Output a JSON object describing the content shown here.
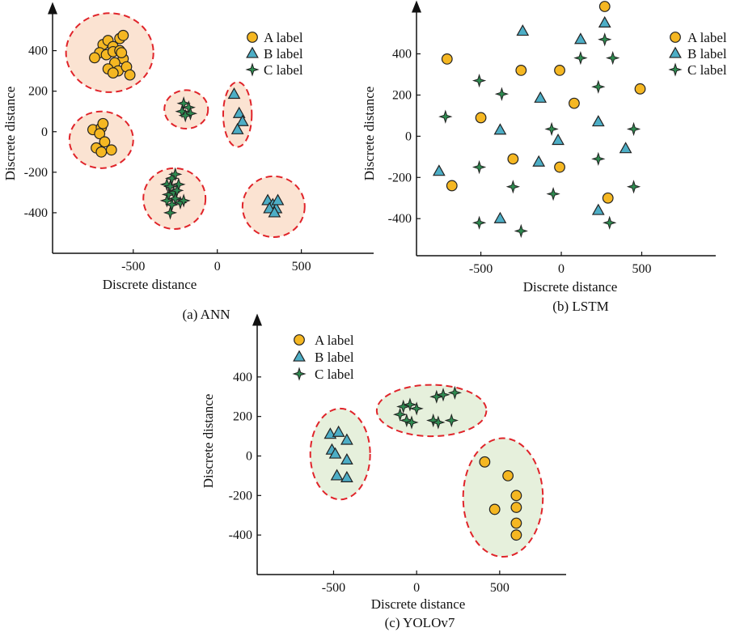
{
  "colors": {
    "a_fill": "#F5B722",
    "b_fill": "#4DAEC6",
    "c_fill": "#2E8B50",
    "marker_stroke": "#222222",
    "cluster_stroke": "#E0242A",
    "cluster_fill_ann": "#FBE3D2",
    "cluster_fill_yolo": "#E6F0DC"
  },
  "icons": {
    "a": "circle-marker",
    "b": "triangle-marker",
    "c": "four-point-star-marker"
  },
  "chart_data": [
    {
      "type": "scatter",
      "caption": "(a) ANN",
      "xlabel": "Discrete distance",
      "ylabel": "Discrete distance",
      "xlim": [
        -980,
        930
      ],
      "ylim": [
        -600,
        610
      ],
      "xticks": [
        -500,
        0,
        500
      ],
      "yticks": [
        -400,
        -200,
        0,
        200,
        400
      ],
      "grid": false,
      "legend": "top-right",
      "series": [
        {
          "name": "A label",
          "marker": "circle",
          "points": [
            [
              -680,
              430
            ],
            [
              -650,
              450
            ],
            [
              -620,
              420
            ],
            [
              -580,
              460
            ],
            [
              -560,
              475
            ],
            [
              -700,
              390
            ],
            [
              -660,
              380
            ],
            [
              -620,
              395
            ],
            [
              -580,
              400
            ],
            [
              -560,
              360
            ],
            [
              -610,
              340
            ],
            [
              -650,
              310
            ],
            [
              -590,
              300
            ],
            [
              -540,
              320
            ],
            [
              -570,
              390
            ],
            [
              -730,
              365
            ],
            [
              -620,
              290
            ],
            [
              -520,
              280
            ],
            [
              -740,
              10
            ],
            [
              -690,
              20
            ],
            [
              -680,
              40
            ],
            [
              -700,
              -10
            ],
            [
              -670,
              -50
            ],
            [
              -720,
              -80
            ],
            [
              -690,
              -100
            ],
            [
              -630,
              -90
            ]
          ]
        },
        {
          "name": "B label",
          "marker": "triangle",
          "points": [
            [
              100,
              185
            ],
            [
              130,
              90
            ],
            [
              150,
              50
            ],
            [
              120,
              10
            ],
            [
              300,
              -340
            ],
            [
              330,
              -360
            ],
            [
              350,
              -380
            ],
            [
              310,
              -380
            ],
            [
              360,
              -340
            ],
            [
              340,
              -400
            ]
          ]
        },
        {
          "name": "C label",
          "marker": "star",
          "points": [
            [
              -200,
              140
            ],
            [
              -170,
              120
            ],
            [
              -210,
              100
            ],
            [
              -160,
              90
            ],
            [
              -190,
              80
            ],
            [
              -300,
              -260
            ],
            [
              -270,
              -230
            ],
            [
              -250,
              -210
            ],
            [
              -280,
              -270
            ],
            [
              -230,
              -260
            ],
            [
              -290,
              -310
            ],
            [
              -260,
              -300
            ],
            [
              -300,
              -340
            ],
            [
              -250,
              -330
            ],
            [
              -220,
              -350
            ],
            [
              -270,
              -360
            ],
            [
              -200,
              -340
            ],
            [
              -280,
              -400
            ],
            [
              -240,
              -290
            ]
          ]
        }
      ],
      "clusters": [
        {
          "cx": -640,
          "cy": 390,
          "rx": 260,
          "ry": 195
        },
        {
          "cx": -690,
          "cy": -40,
          "rx": 190,
          "ry": 140
        },
        {
          "cx": -185,
          "cy": 110,
          "rx": 130,
          "ry": 95
        },
        {
          "cx": 120,
          "cy": 85,
          "rx": 85,
          "ry": 160
        },
        {
          "cx": -255,
          "cy": -330,
          "rx": 185,
          "ry": 150
        },
        {
          "cx": 335,
          "cy": -370,
          "rx": 185,
          "ry": 150
        }
      ]
    },
    {
      "type": "scatter",
      "caption": "(b) LSTM",
      "xlabel": "Discrete distance",
      "ylabel": "Discrete distance",
      "xlim": [
        -900,
        960
      ],
      "ylim": [
        -580,
        630
      ],
      "xticks": [
        -500,
        0,
        500
      ],
      "yticks": [
        -400,
        -200,
        0,
        200,
        400
      ],
      "grid": false,
      "legend": "top-right",
      "series": [
        {
          "name": "A label",
          "marker": "circle",
          "points": [
            [
              -710,
              375
            ],
            [
              -250,
              320
            ],
            [
              -10,
              320
            ],
            [
              270,
              630
            ],
            [
              490,
              230
            ],
            [
              80,
              160
            ],
            [
              -500,
              90
            ],
            [
              -300,
              -110
            ],
            [
              -10,
              -150
            ],
            [
              -680,
              -240
            ],
            [
              290,
              -300
            ]
          ]
        },
        {
          "name": "B label",
          "marker": "triangle",
          "points": [
            [
              -240,
              510
            ],
            [
              120,
              470
            ],
            [
              270,
              550
            ],
            [
              -130,
              185
            ],
            [
              -380,
              30
            ],
            [
              -20,
              -20
            ],
            [
              230,
              70
            ],
            [
              400,
              -60
            ],
            [
              -760,
              -170
            ],
            [
              -140,
              -125
            ],
            [
              -380,
              -400
            ],
            [
              230,
              -360
            ]
          ]
        },
        {
          "name": "C label",
          "marker": "star",
          "points": [
            [
              -510,
              270
            ],
            [
              -370,
              205
            ],
            [
              -720,
              95
            ],
            [
              -60,
              35
            ],
            [
              120,
              380
            ],
            [
              320,
              380
            ],
            [
              230,
              240
            ],
            [
              270,
              470
            ],
            [
              450,
              35
            ],
            [
              -510,
              -150
            ],
            [
              -300,
              -245
            ],
            [
              -50,
              -280
            ],
            [
              230,
              -110
            ],
            [
              450,
              -245
            ],
            [
              -510,
              -420
            ],
            [
              -250,
              -460
            ],
            [
              300,
              -420
            ]
          ]
        }
      ],
      "clusters": []
    },
    {
      "type": "scatter",
      "caption": "(c) YOLOv7",
      "xlabel": "Discrete distance",
      "ylabel": "Discrete distance",
      "xlim": [
        -960,
        900
      ],
      "ylim": [
        -600,
        690
      ],
      "xticks": [
        -500,
        0,
        500
      ],
      "yticks": [
        -400,
        -200,
        0,
        200,
        400
      ],
      "grid": false,
      "legend": "top-left",
      "series": [
        {
          "name": "A label",
          "marker": "circle",
          "points": [
            [
              410,
              -30
            ],
            [
              550,
              -100
            ],
            [
              600,
              -200
            ],
            [
              600,
              -260
            ],
            [
              470,
              -270
            ],
            [
              600,
              -340
            ],
            [
              600,
              -400
            ]
          ]
        },
        {
          "name": "B label",
          "marker": "triangle",
          "points": [
            [
              -520,
              110
            ],
            [
              -470,
              120
            ],
            [
              -420,
              80
            ],
            [
              -510,
              30
            ],
            [
              -490,
              10
            ],
            [
              -420,
              -20
            ],
            [
              -480,
              -100
            ],
            [
              -420,
              -110
            ]
          ]
        },
        {
          "name": "C label",
          "marker": "star",
          "points": [
            [
              -80,
              250
            ],
            [
              -40,
              260
            ],
            [
              0,
              240
            ],
            [
              -100,
              210
            ],
            [
              -60,
              180
            ],
            [
              100,
              180
            ],
            [
              130,
              170
            ],
            [
              210,
              180
            ],
            [
              120,
              300
            ],
            [
              160,
              310
            ],
            [
              230,
              320
            ],
            [
              -30,
              170
            ]
          ]
        }
      ],
      "clusters": [
        {
          "cx": -460,
          "cy": 10,
          "rx": 180,
          "ry": 230
        },
        {
          "cx": 90,
          "cy": 230,
          "rx": 330,
          "ry": 130
        },
        {
          "cx": 520,
          "cy": -210,
          "rx": 240,
          "ry": 300
        }
      ]
    }
  ]
}
